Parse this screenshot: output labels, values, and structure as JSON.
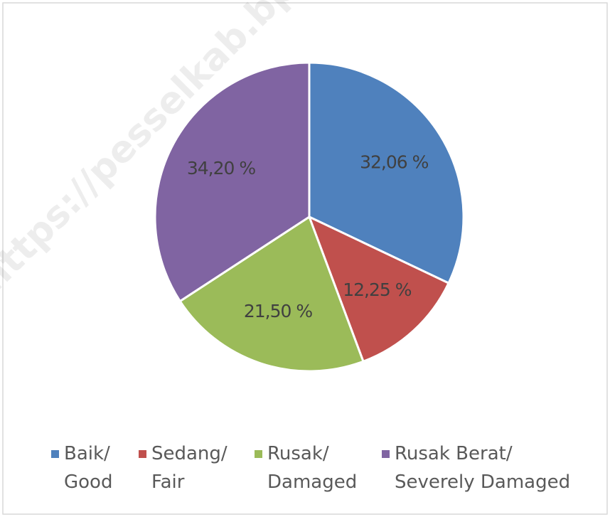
{
  "chart_data": {
    "type": "pie",
    "categories": [
      "Baik/\nGood",
      "Sedang/\nFair",
      "Rusak/\nDamaged",
      "Rusak Berat/\nSeverely Damaged"
    ],
    "values": [
      32.06,
      12.25,
      21.5,
      34.2
    ],
    "value_labels": [
      "32,06 %",
      "12,25 %",
      "21,50 %",
      "34,20 %"
    ],
    "colors": [
      "#4f81bd",
      "#c0504d",
      "#9bbb59",
      "#8064a2"
    ],
    "legend": "bottom"
  },
  "watermark": "https://pesselkab.bps.go.id"
}
